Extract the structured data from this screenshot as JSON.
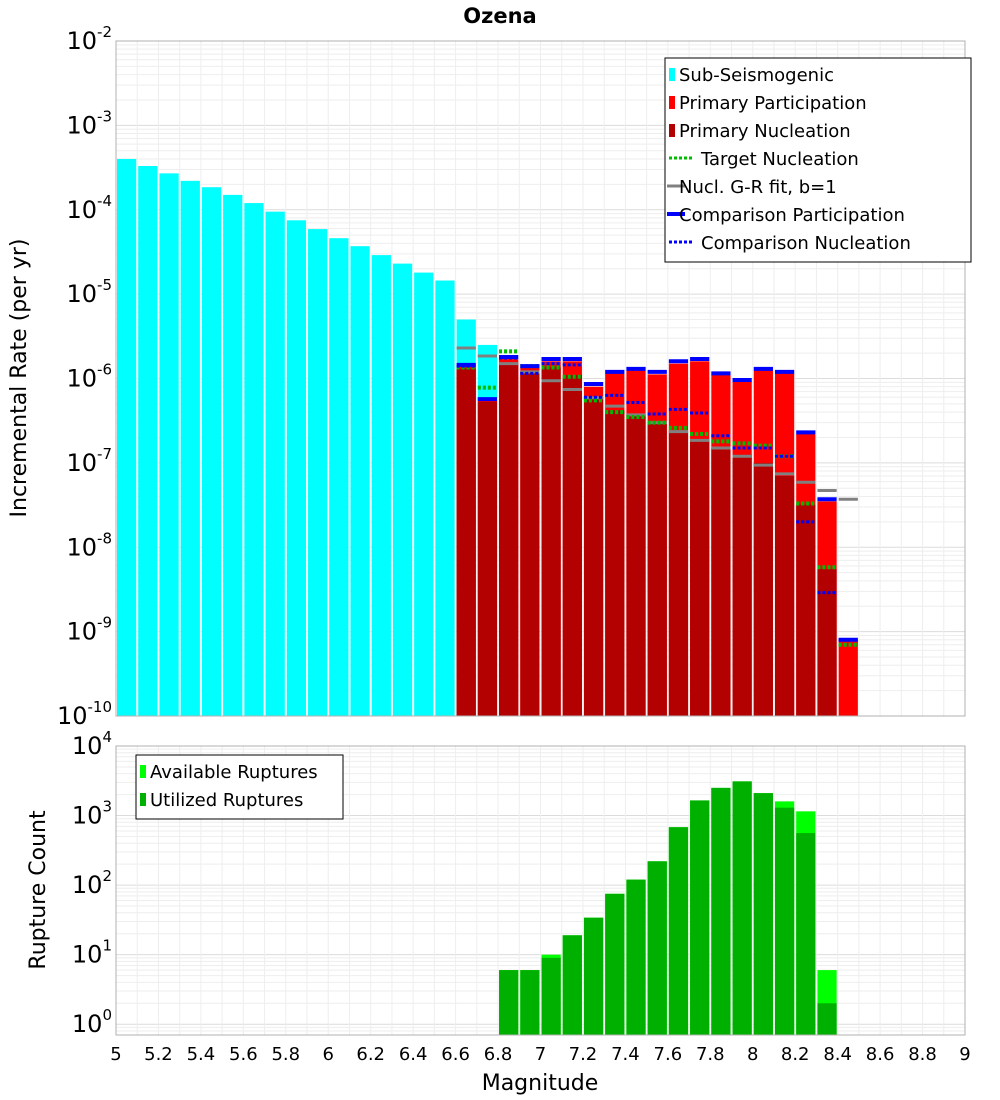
{
  "title": "Ozena",
  "xlabel": "Magnitude",
  "colors": {
    "sub": "#00ffff",
    "primary_participation": "#ff0000",
    "primary_nucleation": "#b30000",
    "target": "#00bb00",
    "gr_fit": "#808080",
    "comparison": "#0000ff",
    "available": "#00ff00",
    "utilized": "#00b000",
    "grid": "#e6e6e6"
  },
  "x_ticks": [
    "5",
    "5.2",
    "5.4",
    "5.6",
    "5.8",
    "6",
    "6.2",
    "6.4",
    "6.6",
    "6.8",
    "7",
    "7.2",
    "7.4",
    "7.6",
    "7.8",
    "8",
    "8.2",
    "8.4",
    "8.6",
    "8.8",
    "9"
  ],
  "chart_data": [
    {
      "type": "bar",
      "name": "incremental-rate",
      "title": "Ozena",
      "ylabel": "Incremental Rate (per yr)",
      "xlabel": "",
      "xlim": [
        5,
        9
      ],
      "ylim": [
        1e-10,
        0.01
      ],
      "yscale": "log",
      "grid": true,
      "legend_position": "top-right",
      "y_ticks": [
        {
          "base": "10",
          "exp": "-2"
        },
        {
          "base": "10",
          "exp": "-3"
        },
        {
          "base": "10",
          "exp": "-4"
        },
        {
          "base": "10",
          "exp": "-5"
        },
        {
          "base": "10",
          "exp": "-6"
        },
        {
          "base": "10",
          "exp": "-7"
        },
        {
          "base": "10",
          "exp": "-8"
        },
        {
          "base": "10",
          "exp": "-9"
        },
        {
          "base": "10",
          "exp": "-10"
        }
      ],
      "legend": [
        {
          "label": "Sub-Seismogenic",
          "style": "box",
          "color": "#00ffff"
        },
        {
          "label": "Primary Participation",
          "style": "box",
          "color": "#ff0000"
        },
        {
          "label": "Primary Nucleation",
          "style": "box",
          "color": "#b30000"
        },
        {
          "label": "Target Nucleation",
          "style": "dotted",
          "color": "#00bb00"
        },
        {
          "label": "Nucl. G-R fit, b=1",
          "style": "line",
          "color": "#808080"
        },
        {
          "label": "Comparison Participation",
          "style": "thick",
          "color": "#0000ff"
        },
        {
          "label": "Comparison Nucleation",
          "style": "dotted",
          "color": "#0000ff"
        }
      ],
      "bin_width": 0.1,
      "sub_seismogenic": {
        "x": [
          5.05,
          5.15,
          5.25,
          5.35,
          5.45,
          5.55,
          5.65,
          5.75,
          5.85,
          5.95,
          6.05,
          6.15,
          6.25,
          6.35,
          6.45,
          6.55,
          6.65,
          6.75
        ],
        "y": [
          0.0004,
          0.00033,
          0.00027,
          0.00022,
          0.000185,
          0.00015,
          0.00012,
          9.5e-05,
          7.5e-05,
          5.9e-05,
          4.6e-05,
          3.7e-05,
          2.9e-05,
          2.3e-05,
          1.8e-05,
          1.45e-05,
          5e-06,
          2.5e-06
        ]
      },
      "primary_participation": {
        "x": [
          6.65,
          6.75,
          6.85,
          6.95,
          7.05,
          7.15,
          7.25,
          7.35,
          7.45,
          7.55,
          7.65,
          7.75,
          7.85,
          7.95,
          8.05,
          8.15,
          8.25,
          8.35,
          8.45
        ],
        "y": [
          1.4e-06,
          5.5e-07,
          1.7e-06,
          1.35e-06,
          1.6e-06,
          1.6e-06,
          8e-07,
          1.15e-06,
          1.25e-06,
          1.12e-06,
          1.5e-06,
          1.6e-06,
          1.1e-06,
          9.2e-07,
          1.25e-06,
          1.15e-06,
          2.2e-07,
          3.5e-08,
          8e-10
        ]
      },
      "primary_nucleation": {
        "x": [
          6.65,
          6.75,
          6.85,
          6.95,
          7.05,
          7.15,
          7.25,
          7.35,
          7.45,
          7.55,
          7.65,
          7.75,
          7.85,
          7.95,
          8.05,
          8.15,
          8.25,
          8.35
        ],
        "y": [
          1.3e-06,
          5.3e-07,
          1.55e-06,
          1.2e-06,
          1.35e-06,
          1.1e-06,
          6e-07,
          4.2e-07,
          3.8e-07,
          3e-07,
          2.4e-07,
          1.9e-07,
          1.5e-07,
          1.25e-07,
          1e-07,
          7e-08,
          3.2e-08,
          5.5e-09
        ]
      },
      "target_nucleation": {
        "x": [
          6.65,
          6.75,
          6.85,
          6.95,
          7.05,
          7.15,
          7.25,
          7.35,
          7.45,
          7.55,
          7.65,
          7.75,
          7.85,
          7.95,
          8.05,
          8.15,
          8.25,
          8.35,
          8.45
        ],
        "y": [
          1.35e-06,
          7.8e-07,
          2.1e-06,
          1.4e-06,
          1.35e-06,
          1.05e-06,
          5.5e-07,
          4e-07,
          3.5e-07,
          3e-07,
          2.6e-07,
          2.2e-07,
          1.8e-07,
          1.7e-07,
          1.6e-07,
          1.2e-07,
          3.3e-08,
          5.8e-09,
          7e-10
        ]
      },
      "gr_fit": {
        "x": [
          6.65,
          6.75,
          6.85,
          6.95,
          7.05,
          7.15,
          7.25,
          7.35,
          7.45,
          7.55,
          7.65,
          7.75,
          7.85,
          7.95,
          8.05,
          8.15,
          8.25,
          8.35,
          8.45
        ],
        "y": [
          2.3e-06,
          1.85e-06,
          1.5e-06,
          1.2e-06,
          9.4e-07,
          7.4e-07,
          5.9e-07,
          4.7e-07,
          3.7e-07,
          3e-07,
          2.35e-07,
          1.85e-07,
          1.5e-07,
          1.2e-07,
          9.4e-08,
          7.4e-08,
          5.9e-08,
          4.7e-08,
          3.7e-08
        ]
      },
      "comparison_participation": {
        "x": [
          6.65,
          6.75,
          6.85,
          6.95,
          7.05,
          7.15,
          7.25,
          7.35,
          7.45,
          7.55,
          7.65,
          7.75,
          7.85,
          7.95,
          8.05,
          8.15,
          8.25,
          8.35,
          8.45
        ],
        "y": [
          1.45e-06,
          5.7e-07,
          1.8e-06,
          1.4e-06,
          1.7e-06,
          1.7e-06,
          8.6e-07,
          1.2e-06,
          1.3e-06,
          1.2e-06,
          1.6e-06,
          1.7e-06,
          1.15e-06,
          9.6e-07,
          1.3e-06,
          1.2e-06,
          2.3e-07,
          3.7e-08,
          8e-10
        ]
      },
      "comparison_nucleation": {
        "x": [
          6.65,
          6.75,
          6.85,
          6.95,
          7.05,
          7.15,
          7.25,
          7.35,
          7.45,
          7.55,
          7.65,
          7.75,
          7.85,
          7.95,
          8.05,
          8.15,
          8.25,
          8.35,
          8.45
        ],
        "y": [
          1.4e-06,
          5.7e-07,
          1.75e-06,
          1.15e-06,
          1.5e-06,
          1.45e-06,
          6e-07,
          6.3e-07,
          5.2e-07,
          3.8e-07,
          4.3e-07,
          3.9e-07,
          2.1e-07,
          1.5e-07,
          1.5e-07,
          1.2e-07,
          2e-08,
          2.9e-09,
          8e-10
        ]
      }
    },
    {
      "type": "bar",
      "name": "rupture-count",
      "title": "",
      "ylabel": "Rupture Count",
      "xlabel": "Magnitude",
      "xlim": [
        5,
        9
      ],
      "ylim": [
        0.7,
        10000
      ],
      "yscale": "log",
      "grid": true,
      "legend_position": "top-left",
      "y_ticks": [
        {
          "base": "10",
          "exp": "4"
        },
        {
          "base": "10",
          "exp": "3"
        },
        {
          "base": "10",
          "exp": "2"
        },
        {
          "base": "10",
          "exp": "1"
        },
        {
          "base": "10",
          "exp": "0"
        }
      ],
      "legend": [
        {
          "label": "Available Ruptures",
          "style": "box",
          "color": "#00ff00"
        },
        {
          "label": "Utilized Ruptures",
          "style": "box",
          "color": "#00b000"
        }
      ],
      "bin_width": 0.1,
      "available": {
        "x": [
          6.85,
          6.95,
          7.05,
          7.15,
          7.25,
          7.35,
          7.45,
          7.55,
          7.65,
          7.75,
          7.85,
          7.95,
          8.05,
          8.15,
          8.25,
          8.35
        ],
        "y": [
          6,
          6,
          10,
          19,
          34,
          75,
          120,
          220,
          680,
          1650,
          2500,
          3100,
          2100,
          1600,
          1150,
          6
        ]
      },
      "utilized": {
        "x": [
          6.85,
          6.95,
          7.05,
          7.15,
          7.25,
          7.35,
          7.45,
          7.55,
          7.65,
          7.75,
          7.85,
          7.95,
          8.05,
          8.15,
          8.25,
          8.35
        ],
        "y": [
          6,
          6,
          9,
          19,
          34,
          75,
          120,
          220,
          680,
          1650,
          2500,
          3100,
          2100,
          1300,
          560,
          2
        ]
      }
    }
  ]
}
